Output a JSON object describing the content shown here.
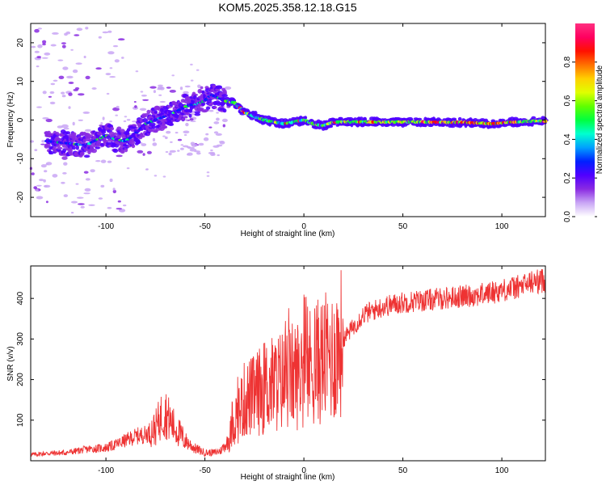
{
  "title": "KOM5.2025.358.12.18.G15",
  "chart_data": [
    {
      "type": "heatmap",
      "xlabel": "Height of straight line (km)",
      "ylabel": "Frequency (Hz)",
      "xlim": [
        -138,
        122
      ],
      "ylim": [
        -25,
        25
      ],
      "xticks": [
        -100,
        -50,
        0,
        50,
        100
      ],
      "yticks": [
        -20,
        -10,
        0,
        10,
        20
      ],
      "ridge_x": [
        -138,
        -120,
        -110,
        -100,
        -95,
        -90,
        -85,
        -80,
        -75,
        -70,
        -65,
        -60,
        -55,
        -50,
        -47,
        -44,
        -40,
        -35,
        -30,
        -25,
        -20,
        -15,
        -10,
        -5,
        0,
        5,
        10,
        15,
        20,
        30,
        40,
        50,
        60,
        70,
        80,
        90,
        95,
        100,
        105,
        110,
        115,
        122
      ],
      "ridge_y": [
        -5,
        -6,
        -6.5,
        -4,
        -5,
        -5.5,
        -3.5,
        -1,
        0,
        1,
        2,
        3.5,
        4,
        5,
        6.5,
        6,
        5,
        4.5,
        2,
        1,
        0,
        -0.5,
        -1,
        -0.5,
        0,
        -1,
        -1.5,
        -0.5,
        -0.5,
        -0.5,
        -0.5,
        -0.5,
        -0.5,
        -0.6,
        -0.6,
        -0.8,
        -1,
        -0.8,
        -0.5,
        -0.5,
        -0.3,
        -0.3
      ],
      "colorbar": {
        "label": "Normalized spectral amplitude",
        "range": [
          0,
          1
        ],
        "ticks": [
          "0.0",
          "0.2",
          "0.4",
          "0.6",
          "0.8"
        ],
        "colors": [
          "#ffffff",
          "#c9a6f5",
          "#8a2be2",
          "#5000ff",
          "#0020ff",
          "#00a0ff",
          "#00ffd0",
          "#00ff40",
          "#60ff00",
          "#e0ff00",
          "#ffd000",
          "#ff7000",
          "#ff1000",
          "#ff0060",
          "#ff3080"
        ]
      }
    },
    {
      "type": "line",
      "xlabel": "Height of straight line (km)",
      "ylabel": "SNR (v/v)",
      "xlim": [
        -138,
        122
      ],
      "ylim": [
        0,
        480
      ],
      "xticks": [
        -100,
        -50,
        0,
        50,
        100
      ],
      "yticks": [
        100,
        200,
        300,
        400
      ],
      "series": [
        {
          "name": "SNR",
          "color": "#ee3333",
          "x": [
            -138,
            -130,
            -120,
            -110,
            -100,
            -95,
            -90,
            -85,
            -80,
            -75,
            -72,
            -70,
            -68,
            -65,
            -60,
            -55,
            -50,
            -45,
            -42,
            -38,
            -35,
            -30,
            -25,
            -20,
            -15,
            -10,
            -5,
            0,
            5,
            10,
            15,
            20,
            25,
            30,
            40,
            50,
            60,
            70,
            80,
            90,
            100,
            110,
            115,
            122
          ],
          "y": [
            15,
            18,
            20,
            28,
            32,
            40,
            50,
            60,
            65,
            80,
            110,
            120,
            100,
            80,
            50,
            30,
            20,
            20,
            25,
            50,
            100,
            150,
            160,
            180,
            190,
            200,
            210,
            220,
            240,
            250,
            260,
            300,
            330,
            360,
            380,
            390,
            395,
            400,
            405,
            410,
            420,
            430,
            440,
            445
          ]
        }
      ]
    }
  ]
}
